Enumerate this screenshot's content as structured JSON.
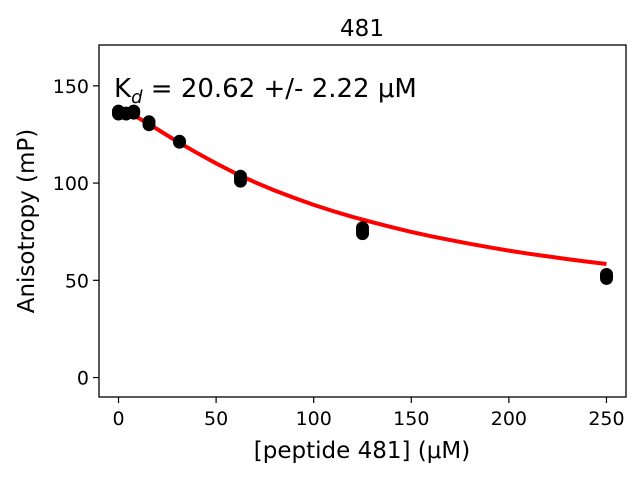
{
  "chart_data": {
    "type": "scatter",
    "title": "481",
    "xlabel": "[peptide 481] (μM)",
    "ylabel": "Anisotropy (mP)",
    "xlim": [
      -10,
      260
    ],
    "ylim": [
      -10,
      171
    ],
    "xticks": [
      0,
      50,
      100,
      150,
      200,
      250
    ],
    "yticks": [
      0,
      50,
      100,
      150
    ],
    "grid": false,
    "annotation": {
      "main": "K",
      "sub": "d",
      "rest": " = 20.62 +/- 2.22 ",
      "unit": "μM"
    },
    "series": [
      {
        "kind": "points",
        "color": "#000000",
        "x": [
          0,
          0,
          0,
          3.9,
          3.9,
          7.8,
          7.8,
          15.6,
          15.6,
          31.25,
          31.25,
          62.5,
          62.5,
          62.5,
          125,
          125,
          125,
          250,
          250,
          250
        ],
        "y": [
          135.5,
          136.5,
          137,
          135.5,
          136,
          136,
          137,
          130,
          131.5,
          121,
          121.5,
          101,
          102.5,
          103.5,
          74,
          75.5,
          77,
          51,
          52,
          53
        ]
      },
      {
        "kind": "fit",
        "color": "#ff0000",
        "x": [
          0,
          10,
          20,
          30,
          40,
          50,
          60,
          70,
          80,
          90,
          100,
          110,
          120,
          130,
          140,
          150,
          160,
          170,
          180,
          190,
          200,
          210,
          220,
          230,
          240,
          250
        ],
        "y": [
          136.8,
          133.6,
          127.6,
          121.4,
          115.6,
          110.1,
          105.0,
          100.4,
          96.2,
          92.4,
          88.8,
          85.6,
          82.6,
          79.9,
          77.3,
          74.9,
          72.7,
          70.7,
          68.8,
          67.0,
          65.3,
          63.7,
          62.3,
          60.9,
          59.6,
          58.4
        ]
      }
    ]
  }
}
